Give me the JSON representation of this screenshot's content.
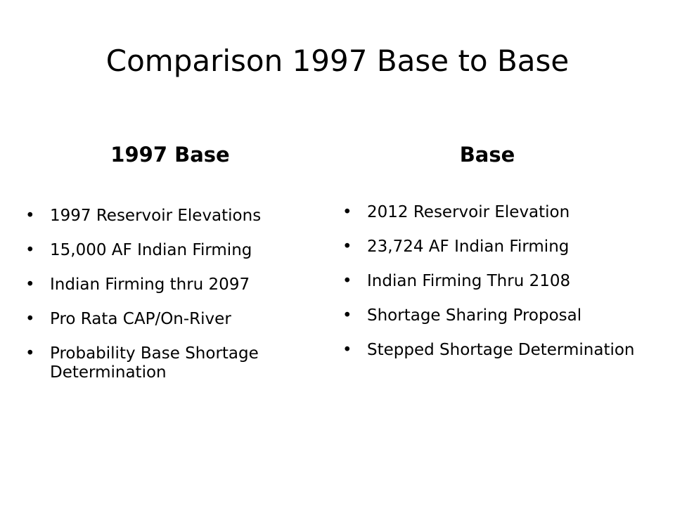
{
  "title": "Comparison 1997 Base to Base",
  "columns": [
    {
      "heading": "1997 Base",
      "items": [
        "1997 Reservoir Elevations",
        "15,000 AF Indian Firming",
        "Indian Firming thru 2097",
        "Pro Rata CAP/On-River",
        "Probability Base Shortage Determination"
      ]
    },
    {
      "heading": "Base",
      "items": [
        "2012 Reservoir Elevation",
        "23,724 AF Indian Firming",
        "Indian Firming Thru 2108",
        "Shortage Sharing Proposal",
        "Stepped Shortage Determination"
      ]
    }
  ]
}
